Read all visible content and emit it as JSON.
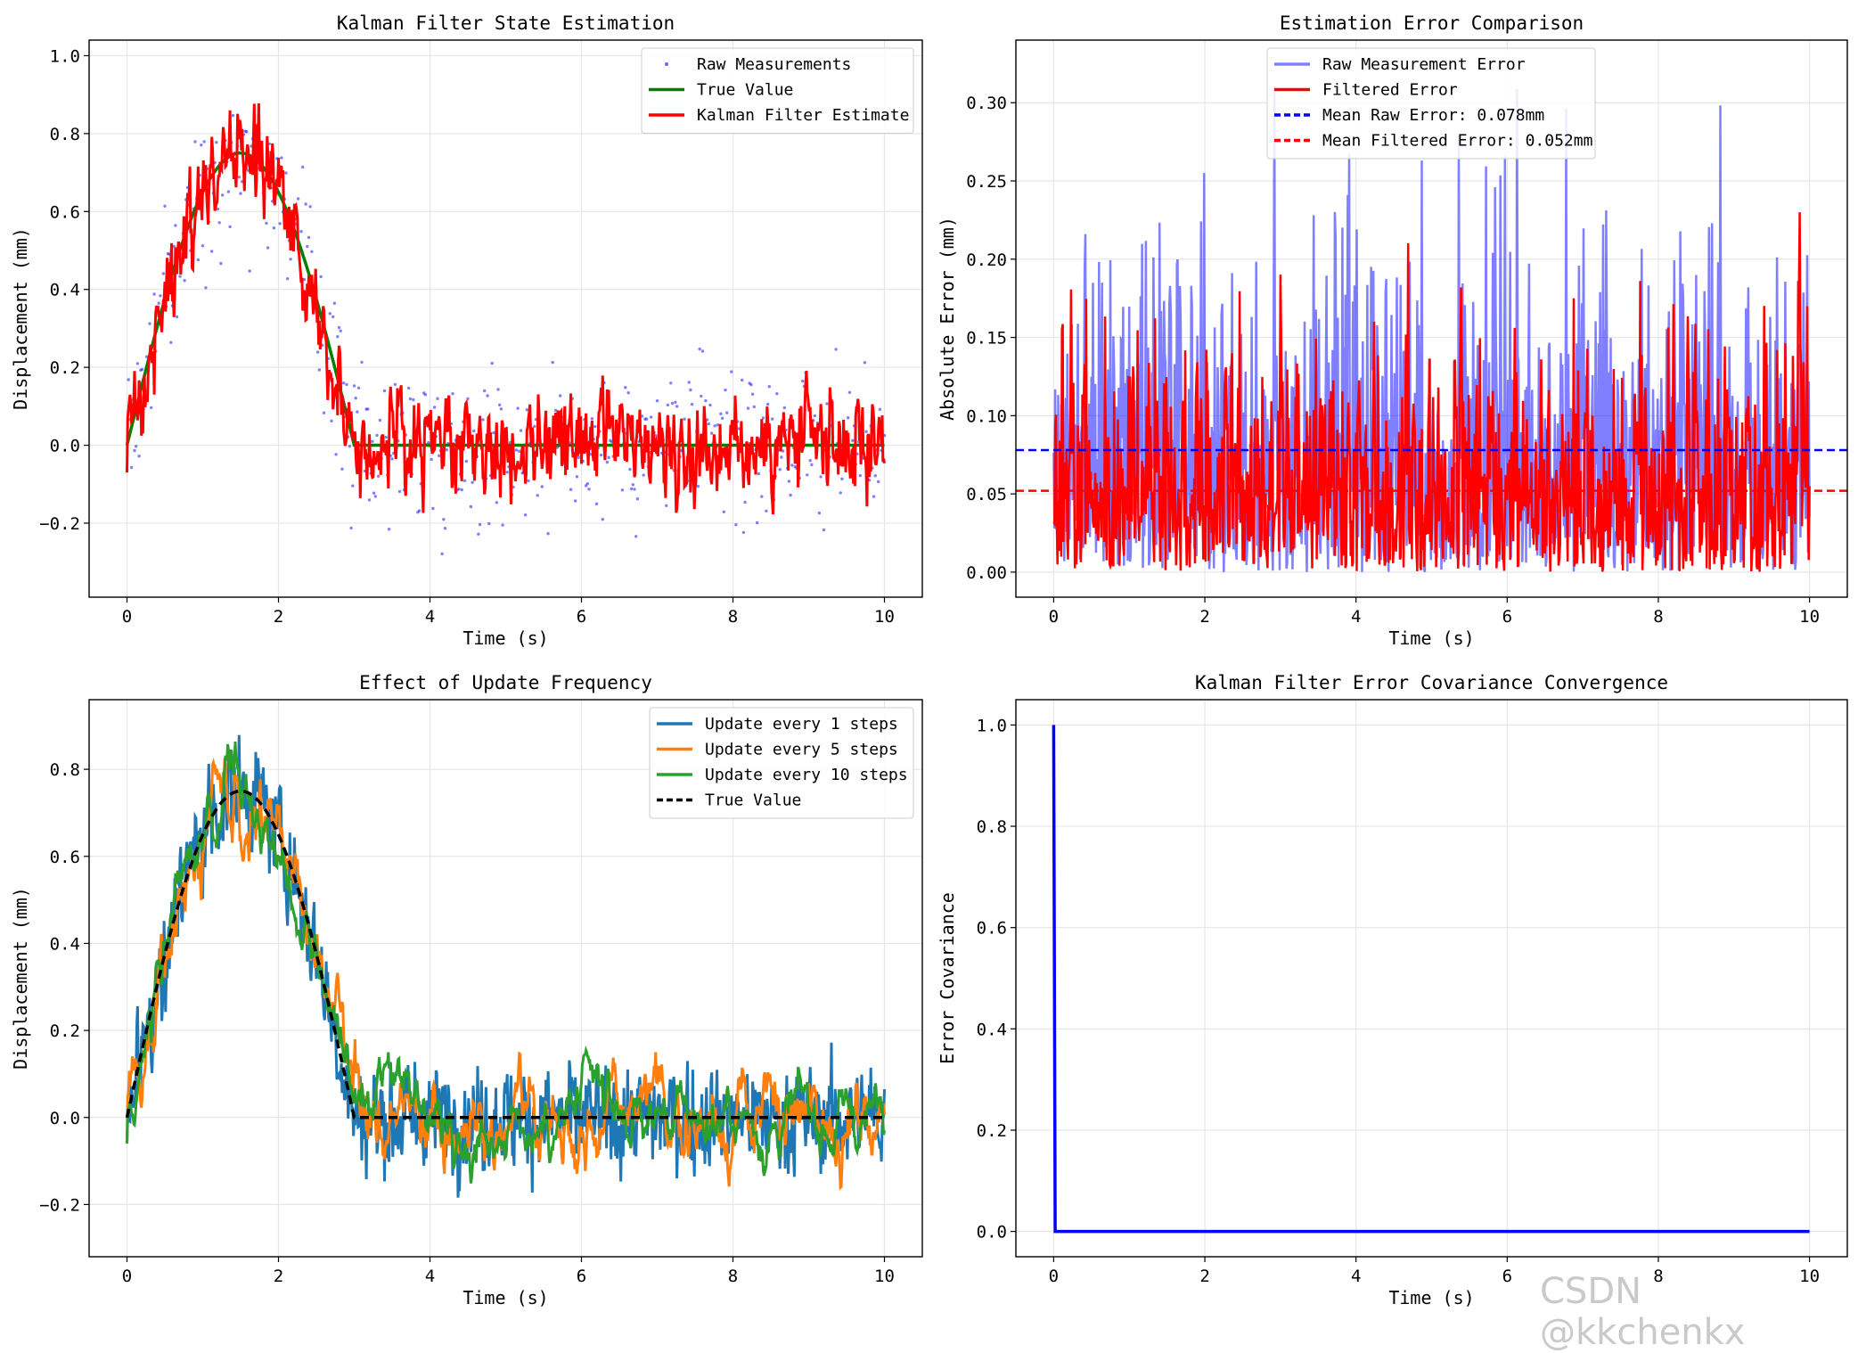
{
  "watermark": "CSDN @kkchenkx",
  "chart_data": [
    {
      "type": "line",
      "title": "Kalman Filter State Estimation",
      "xlabel": "Time (s)",
      "ylabel": "Displacement (mm)",
      "xlim": [
        -0.5,
        10.5
      ],
      "ylim": [
        -0.39,
        1.04
      ],
      "xticks": [
        0,
        2,
        4,
        6,
        8,
        10
      ],
      "yticks": [
        -0.2,
        0.0,
        0.2,
        0.4,
        0.6,
        0.8,
        1.0
      ],
      "grid": true,
      "legend_position": "top-right",
      "series": [
        {
          "name": "Raw Measurements",
          "style": "scatter",
          "color": "#0000ff",
          "opacity": 0.5,
          "description_values": "true value plus noise (std ~0.1), ~500 points over 0-10 s"
        },
        {
          "name": "True Value",
          "style": "line",
          "color": "#008000",
          "x": [
            0,
            0.5,
            1.0,
            1.5,
            2.0,
            2.5,
            3.0,
            4,
            5,
            6,
            7,
            8,
            9,
            10
          ],
          "y": [
            0,
            0.28,
            0.65,
            0.75,
            0.65,
            0.375,
            0.0,
            0,
            0,
            0,
            0,
            0,
            0,
            0
          ]
        },
        {
          "name": "Kalman Filter Estimate",
          "style": "line",
          "color": "#ff0000",
          "description_values": "noisy tracking of true value (std ~0.06)"
        }
      ]
    },
    {
      "type": "line",
      "title": "Estimation Error Comparison",
      "xlabel": "Time (s)",
      "ylabel": "Absolute Error (mm)",
      "xlim": [
        -0.5,
        10.5
      ],
      "ylim": [
        -0.016,
        0.34
      ],
      "xticks": [
        0,
        2,
        4,
        6,
        8,
        10
      ],
      "yticks": [
        0.0,
        0.05,
        0.1,
        0.15,
        0.2,
        0.25,
        0.3
      ],
      "grid": true,
      "legend_position": "top-center",
      "series": [
        {
          "name": "Raw Measurement Error",
          "style": "line",
          "color": "#0000ff",
          "opacity": 0.5
        },
        {
          "name": "Filtered Error",
          "style": "line",
          "color": "#ff0000"
        },
        {
          "name": "Mean Raw Error: 0.078mm",
          "style": "dashed-hline",
          "color": "#0000ff",
          "value": 0.078
        },
        {
          "name": "Mean Filtered Error: 0.052mm",
          "style": "dashed-hline",
          "color": "#ff0000",
          "value": 0.052
        }
      ]
    },
    {
      "type": "line",
      "title": "Effect of Update Frequency",
      "xlabel": "Time (s)",
      "ylabel": "Displacement (mm)",
      "xlim": [
        -0.5,
        10.5
      ],
      "ylim": [
        -0.32,
        0.96
      ],
      "xticks": [
        0,
        2,
        4,
        6,
        8,
        10
      ],
      "yticks": [
        -0.2,
        0.0,
        0.2,
        0.4,
        0.6,
        0.8
      ],
      "grid": true,
      "legend_position": "top-right",
      "series": [
        {
          "name": "Update every 1 steps",
          "style": "line",
          "color": "#1f77b4"
        },
        {
          "name": "Update every 5 steps",
          "style": "line",
          "color": "#ff7f0e"
        },
        {
          "name": "Update every 10 steps",
          "style": "line",
          "color": "#2ca02c"
        },
        {
          "name": "True Value",
          "style": "dashed",
          "color": "#000000"
        }
      ]
    },
    {
      "type": "line",
      "title": "Kalman Filter Error Covariance Convergence",
      "xlabel": "Time (s)",
      "ylabel": "Error Covariance",
      "xlim": [
        -0.5,
        10.5
      ],
      "ylim": [
        -0.05,
        1.05
      ],
      "xticks": [
        0,
        2,
        4,
        6,
        8,
        10
      ],
      "yticks": [
        0.0,
        0.2,
        0.4,
        0.6,
        0.8,
        1.0
      ],
      "grid": true,
      "series": [
        {
          "name": "",
          "style": "line",
          "color": "#0000ff",
          "x": [
            0,
            0.02,
            10
          ],
          "y": [
            1.0,
            0.0,
            0.0
          ]
        }
      ]
    }
  ]
}
